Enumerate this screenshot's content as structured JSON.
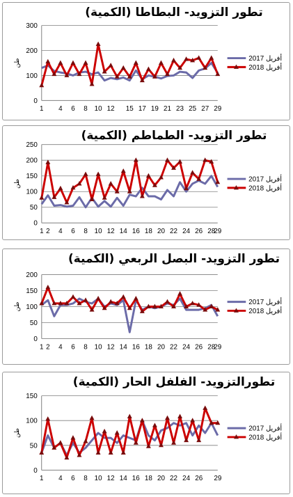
{
  "colors": {
    "y2017": "#6b6ba8",
    "y2018": "#cc0000",
    "marker": "#7a0c0c",
    "grid": "#7f7f7f"
  },
  "chart_data": [
    {
      "type": "line",
      "title": "تطور التزويد- البطاطا (الكمية)",
      "ylabel": "طن",
      "ylim": [
        0,
        300
      ],
      "yticks": [
        0,
        100,
        200,
        300
      ],
      "xticks": [
        1,
        4,
        6,
        8,
        10,
        12,
        15,
        17,
        19,
        21,
        23,
        25,
        27,
        29
      ],
      "x": [
        1,
        2,
        3,
        4,
        5,
        6,
        7,
        8,
        9,
        10,
        11,
        12,
        13,
        14,
        15,
        16,
        17,
        18,
        19,
        20,
        21,
        22,
        23,
        24,
        25,
        26,
        27,
        28,
        29
      ],
      "series": [
        {
          "name": "أفريل 2017",
          "values": [
            130,
            140,
            118,
            112,
            108,
            100,
            112,
            115,
            105,
            112,
            80,
            90,
            85,
            92,
            80,
            120,
            85,
            100,
            95,
            88,
            98,
            100,
            115,
            112,
            90,
            120,
            128,
            150,
            110
          ]
        },
        {
          "name": "أفريل 2018",
          "values": [
            60,
            155,
            105,
            150,
            100,
            150,
            105,
            150,
            65,
            225,
            115,
            140,
            95,
            130,
            95,
            150,
            80,
            125,
            95,
            150,
            105,
            160,
            130,
            165,
            160,
            170,
            130,
            170,
            105
          ]
        }
      ]
    },
    {
      "type": "line",
      "title": "تطور التزويد- الطماطم (الكمية)",
      "ylabel": "طن",
      "ylim": [
        0,
        250
      ],
      "yticks": [
        0,
        50,
        100,
        150,
        200,
        250
      ],
      "xticks": [
        1,
        2,
        4,
        6,
        8,
        10,
        12,
        14,
        16,
        18,
        20,
        22,
        24,
        26,
        28,
        29
      ],
      "x": [
        1,
        2,
        3,
        4,
        5,
        6,
        7,
        8,
        9,
        10,
        11,
        12,
        13,
        14,
        15,
        16,
        17,
        18,
        19,
        20,
        21,
        22,
        23,
        24,
        25,
        26,
        27,
        28,
        29
      ],
      "series": [
        {
          "name": "أفريل 2017",
          "values": [
            60,
            88,
            55,
            57,
            52,
            55,
            82,
            50,
            80,
            52,
            70,
            52,
            80,
            55,
            90,
            85,
            112,
            85,
            85,
            75,
            105,
            85,
            130,
            100,
            125,
            135,
            125,
            150,
            115
          ]
        },
        {
          "name": "أفريل 2018",
          "values": [
            80,
            193,
            82,
            110,
            65,
            112,
            125,
            155,
            75,
            155,
            80,
            125,
            100,
            165,
            100,
            200,
            85,
            150,
            120,
            145,
            200,
            175,
            195,
            110,
            160,
            140,
            200,
            195,
            130
          ]
        }
      ]
    },
    {
      "type": "line",
      "title": "تطور التزويد- البصل الربعي (الكمية)",
      "ylabel": "طن",
      "ylim": [
        0,
        200
      ],
      "yticks": [
        0,
        50,
        100,
        150,
        200
      ],
      "xticks": [
        1,
        2,
        4,
        6,
        8,
        10,
        12,
        14,
        16,
        18,
        20,
        22,
        24,
        26,
        28,
        29
      ],
      "x": [
        1,
        2,
        3,
        4,
        5,
        6,
        7,
        8,
        9,
        10,
        11,
        12,
        13,
        14,
        15,
        16,
        17,
        18,
        19,
        20,
        21,
        22,
        23,
        24,
        25,
        26,
        27,
        28,
        29
      ],
      "series": [
        {
          "name": "أفريل 2017",
          "values": [
            105,
            120,
            70,
            105,
            105,
            110,
            125,
            115,
            110,
            125,
            100,
            110,
            105,
            120,
            20,
            120,
            90,
            100,
            95,
            100,
            110,
            105,
            125,
            90,
            90,
            90,
            95,
            105,
            70
          ]
        },
        {
          "name": "أفريل 2018",
          "values": [
            110,
            160,
            110,
            110,
            110,
            130,
            110,
            120,
            90,
            125,
            95,
            115,
            110,
            130,
            95,
            125,
            85,
            100,
            100,
            100,
            115,
            100,
            140,
            100,
            110,
            105,
            90,
            100,
            90
          ]
        }
      ]
    },
    {
      "type": "line",
      "title": "تطورالتزويد- الفلفل الحار (الكمية)",
      "ylabel": "طن",
      "ylim": [
        0,
        150
      ],
      "yticks": [
        0,
        50,
        100,
        150
      ],
      "xticks": [
        1,
        4,
        6,
        8,
        10,
        12,
        14,
        16,
        18,
        20,
        22,
        24,
        26,
        29
      ],
      "x": [
        1,
        2,
        3,
        4,
        5,
        6,
        7,
        8,
        9,
        10,
        11,
        12,
        13,
        14,
        15,
        16,
        17,
        18,
        19,
        20,
        21,
        22,
        23,
        24,
        25,
        26,
        27,
        28,
        29
      ],
      "series": [
        {
          "name": "أفريل 2017",
          "values": [
            35,
            70,
            45,
            55,
            30,
            55,
            35,
            45,
            60,
            75,
            65,
            65,
            55,
            70,
            65,
            60,
            100,
            70,
            60,
            80,
            85,
            95,
            90,
            95,
            70,
            90,
            75,
            95,
            70
          ]
        },
        {
          "name": "أفريل 2018",
          "values": [
            35,
            103,
            45,
            55,
            25,
            65,
            30,
            58,
            105,
            35,
            78,
            35,
            75,
            35,
            108,
            55,
            100,
            48,
            90,
            50,
            105,
            55,
            108,
            60,
            100,
            60,
            125,
            95,
            95
          ]
        }
      ]
    }
  ]
}
